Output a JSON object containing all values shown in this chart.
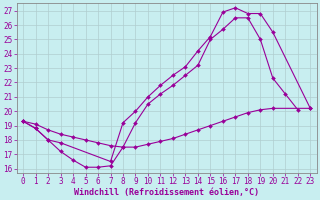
{
  "xlabel": "Windchill (Refroidissement éolien,°C)",
  "background_color": "#c8eef0",
  "line_color": "#990099",
  "grid_color": "#b0cdd0",
  "xlim_min": -0.5,
  "xlim_max": 23.5,
  "ylim_min": 15.7,
  "ylim_max": 27.5,
  "xticks": [
    0,
    1,
    2,
    3,
    4,
    5,
    6,
    7,
    8,
    9,
    10,
    11,
    12,
    13,
    14,
    15,
    16,
    17,
    18,
    19,
    20,
    21,
    22,
    23
  ],
  "yticks": [
    16,
    17,
    18,
    19,
    20,
    21,
    22,
    23,
    24,
    25,
    26,
    27
  ],
  "curve1_x": [
    0,
    1,
    2,
    3,
    4,
    5,
    6,
    7,
    8,
    9,
    10,
    11,
    12,
    13,
    14,
    15,
    16,
    17,
    18,
    19,
    20,
    21,
    22
  ],
  "curve1_y": [
    19.3,
    18.8,
    18.0,
    17.2,
    16.6,
    16.1,
    16.1,
    16.2,
    17.5,
    19.2,
    20.5,
    21.2,
    21.8,
    22.5,
    23.2,
    25.0,
    25.7,
    26.5,
    26.5,
    25.0,
    22.3,
    21.2,
    20.1
  ],
  "curve2_x": [
    0,
    1,
    2,
    3,
    7,
    8,
    9,
    10,
    11,
    12,
    13,
    14,
    15,
    16,
    17,
    18,
    19,
    20,
    23
  ],
  "curve2_y": [
    19.3,
    18.8,
    18.0,
    17.8,
    16.5,
    19.2,
    20.0,
    21.0,
    21.8,
    22.5,
    23.1,
    24.2,
    25.2,
    26.9,
    27.2,
    26.8,
    26.8,
    25.5,
    20.2
  ],
  "curve3_x": [
    0,
    1,
    2,
    3,
    4,
    5,
    6,
    7,
    8,
    9,
    10,
    11,
    12,
    13,
    14,
    15,
    16,
    17,
    18,
    19,
    20,
    23
  ],
  "curve3_y": [
    19.3,
    19.1,
    18.7,
    18.4,
    18.2,
    18.0,
    17.8,
    17.6,
    17.5,
    17.5,
    17.7,
    17.9,
    18.1,
    18.4,
    18.7,
    19.0,
    19.3,
    19.6,
    19.9,
    20.1,
    20.2,
    20.2
  ],
  "markersize": 2.0,
  "linewidth": 0.8,
  "tick_fontsize": 5.5,
  "label_fontsize": 6.0
}
